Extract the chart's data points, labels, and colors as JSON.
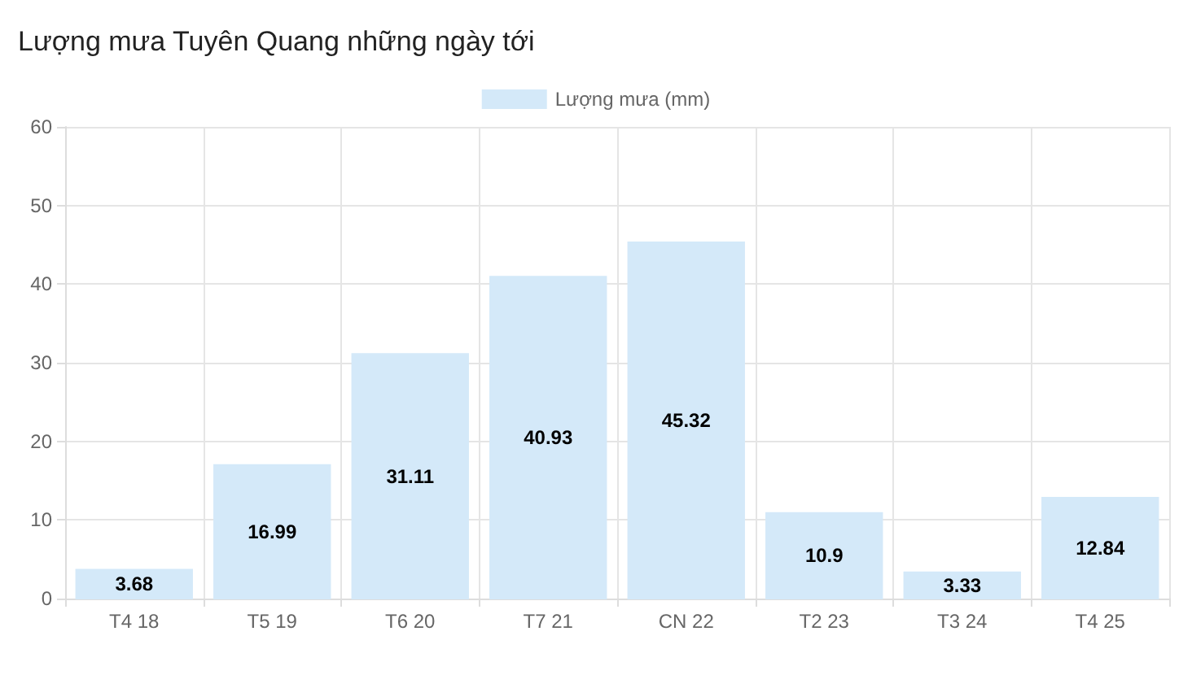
{
  "chart_data": {
    "type": "bar",
    "title": "Lượng mưa Tuyên Quang những ngày tới",
    "categories": [
      "T4 18",
      "T5 19",
      "T6 20",
      "T7 21",
      "CN 22",
      "T2 23",
      "T3 24",
      "T4 25"
    ],
    "series": [
      {
        "name": "Lượng mưa (mm)",
        "color": "#d4e9f9",
        "values": [
          3.68,
          16.99,
          31.11,
          40.93,
          45.32,
          10.9,
          3.33,
          12.84
        ]
      }
    ],
    "ylim": [
      0,
      60
    ],
    "yticks": [
      0,
      10,
      20,
      30,
      40,
      50,
      60
    ],
    "grid": true,
    "legend": "top",
    "data_labels": true
  }
}
